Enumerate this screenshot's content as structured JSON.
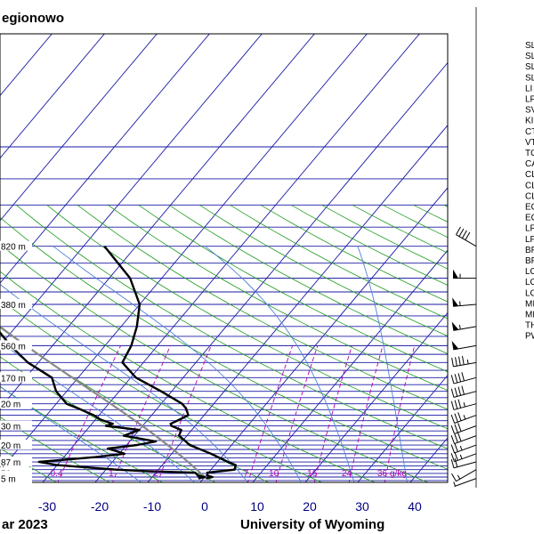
{
  "title": "egionowo",
  "footer_left": "ar 2023",
  "footer_right": "University of Wyoming",
  "chart_data": {
    "type": "line",
    "x_ticks": [
      "-30",
      "-20",
      "-10",
      "0",
      "10",
      "20",
      "30",
      "40"
    ],
    "height_labels": [
      {
        "text": "820 m",
        "p": 200
      },
      {
        "text": "380 m",
        "p": 300
      },
      {
        "text": "560 m",
        "p": 400
      },
      {
        "text": "170 m",
        "p": 500
      },
      {
        "text": "20 m",
        "p": 600
      },
      {
        "text": "30 m",
        "p": 700
      },
      {
        "text": "20 m",
        "p": 800
      },
      {
        "text": "87 m",
        "p": 900
      },
      {
        "text": "56 m",
        "p": 970
      },
      {
        "text": "9 m",
        "p": 990
      },
      {
        "text": "5 m",
        "p": 1010
      }
    ],
    "mixing_ratio_labels": [
      "0.4",
      "1",
      "2",
      "7",
      "10",
      "16",
      "24",
      "36",
      "g/kg"
    ],
    "mixing_ratio_values": [
      0.4,
      1,
      2,
      7,
      10,
      16,
      24,
      36
    ],
    "temperature": [
      [
        1010,
        0.5
      ],
      [
        1000,
        1.5
      ],
      [
        990,
        0.3
      ],
      [
        970,
        -0.2
      ],
      [
        950,
        4.5
      ],
      [
        920,
        4.0
      ],
      [
        900,
        2.0
      ],
      [
        850,
        -2.5
      ],
      [
        800,
        -8.0
      ],
      [
        770,
        -10.0
      ],
      [
        750,
        -11.5
      ],
      [
        720,
        -12.0
      ],
      [
        700,
        -14.5
      ],
      [
        690,
        -15.0
      ],
      [
        670,
        -14.0
      ],
      [
        650,
        -13.0
      ],
      [
        620,
        -14.5
      ],
      [
        600,
        -16.0
      ],
      [
        550,
        -22.0
      ],
      [
        500,
        -29.0
      ],
      [
        450,
        -34.0
      ],
      [
        400,
        -35.0
      ],
      [
        350,
        -37.0
      ],
      [
        300,
        -40.0
      ],
      [
        250,
        -46.0
      ],
      [
        200,
        -56.0
      ]
    ],
    "dewpoint": [
      [
        1010,
        -1.0
      ],
      [
        1000,
        0.0
      ],
      [
        990,
        -1.5
      ],
      [
        970,
        -2.5
      ],
      [
        960,
        -12.0
      ],
      [
        950,
        -18.0
      ],
      [
        920,
        -30.0
      ],
      [
        900,
        -34.0
      ],
      [
        870,
        -24.0
      ],
      [
        850,
        -19.0
      ],
      [
        820,
        -23.0
      ],
      [
        800,
        -18.0
      ],
      [
        780,
        -15.0
      ],
      [
        750,
        -22.0
      ],
      [
        720,
        -20.0
      ],
      [
        700,
        -27.0
      ],
      [
        690,
        -26.0
      ],
      [
        670,
        -29.0
      ],
      [
        650,
        -31.0
      ],
      [
        620,
        -35.0
      ],
      [
        600,
        -38.0
      ],
      [
        550,
        -42.0
      ],
      [
        500,
        -45.0
      ],
      [
        450,
        -52.0
      ],
      [
        400,
        -58.0
      ],
      [
        350,
        -64.0
      ],
      [
        300,
        -67.0
      ],
      [
        250,
        -73.0
      ],
      [
        200,
        -79.0
      ]
    ],
    "station_indices": [
      "SL",
      "SL",
      "SL",
      "SL",
      "LI",
      "LF",
      "SV",
      "KI",
      "CT",
      "VT",
      "TC",
      "CA",
      "CL",
      "CL",
      "CL",
      "EQ",
      "EQ",
      "LF",
      "LF",
      "BF",
      "BF",
      "LC",
      "LC",
      "LC",
      "MI",
      "ME",
      "TH",
      "PW"
    ],
    "wind_barbs": [
      [
        1010,
        250,
        5
      ],
      [
        950,
        240,
        15
      ],
      [
        900,
        255,
        20
      ],
      [
        850,
        250,
        25
      ],
      [
        800,
        250,
        25
      ],
      [
        750,
        250,
        30
      ],
      [
        700,
        250,
        30
      ],
      [
        650,
        250,
        35
      ],
      [
        600,
        255,
        35
      ],
      [
        550,
        255,
        40
      ],
      [
        500,
        255,
        40
      ],
      [
        450,
        260,
        45
      ],
      [
        400,
        260,
        50
      ],
      [
        350,
        260,
        55
      ],
      [
        300,
        265,
        55
      ],
      [
        250,
        270,
        55
      ],
      [
        200,
        300,
        40
      ]
    ],
    "xlim": [
      -40,
      45
    ],
    "ylim": [
      200,
      1015
    ]
  }
}
